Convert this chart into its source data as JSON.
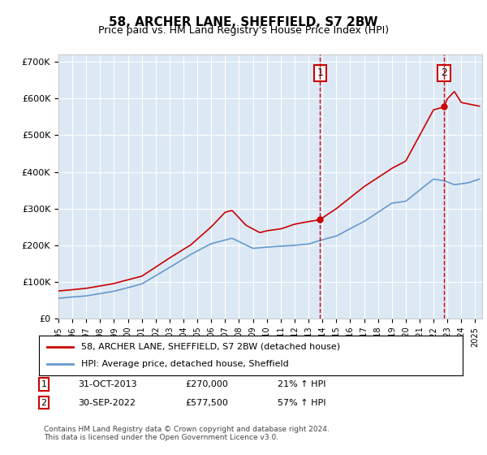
{
  "title": "58, ARCHER LANE, SHEFFIELD, S7 2BW",
  "subtitle": "Price paid vs. HM Land Registry's House Price Index (HPI)",
  "ylabel_ticks": [
    "£0",
    "£100K",
    "£200K",
    "£300K",
    "£400K",
    "£500K",
    "£600K",
    "£700K"
  ],
  "ylim": [
    0,
    720000
  ],
  "xlim_start": 1995.0,
  "xlim_end": 2025.5,
  "red_line_color": "#cc0000",
  "blue_line_color": "#6699cc",
  "background_color": "#dce9f5",
  "grid_color": "#ffffff",
  "annotation1": {
    "label": "1",
    "date_num": 2013.83,
    "price": 270000,
    "hpi_pct": "21% ↑ HPI",
    "date_str": "31-OCT-2013"
  },
  "annotation2": {
    "label": "2",
    "date_num": 2022.75,
    "price": 577500,
    "hpi_pct": "57% ↑ HPI",
    "date_str": "30-SEP-2022"
  },
  "legend_red": "58, ARCHER LANE, SHEFFIELD, S7 2BW (detached house)",
  "legend_blue": "HPI: Average price, detached house, Sheffield",
  "footer": "Contains HM Land Registry data © Crown copyright and database right 2024.\nThis data is licensed under the Open Government Licence v3.0.",
  "xtick_years": [
    1995,
    1996,
    1997,
    1998,
    1999,
    2000,
    2001,
    2002,
    2003,
    2004,
    2005,
    2006,
    2007,
    2008,
    2009,
    2010,
    2011,
    2012,
    2013,
    2014,
    2015,
    2016,
    2017,
    2018,
    2019,
    2020,
    2021,
    2022,
    2023,
    2024,
    2025
  ],
  "blue_kx": [
    1995,
    1997,
    1999,
    2001,
    2003,
    2004.5,
    2006,
    2007.5,
    2009,
    2010,
    2011,
    2012,
    2013,
    2014,
    2015,
    2016,
    2017,
    2018,
    2019,
    2020,
    2021,
    2022,
    2022.8,
    2023.5,
    2024.5,
    2025.3
  ],
  "blue_ky": [
    55000,
    62000,
    75000,
    95000,
    140000,
    175000,
    205000,
    220000,
    192000,
    195000,
    198000,
    200000,
    203000,
    215000,
    225000,
    245000,
    265000,
    290000,
    315000,
    320000,
    350000,
    380000,
    375000,
    365000,
    370000,
    380000
  ],
  "red_kx": [
    1995,
    1997,
    1999,
    2001,
    2003,
    2004.5,
    2006,
    2007,
    2007.5,
    2008.5,
    2009.5,
    2010,
    2011,
    2012,
    2013,
    2013.83,
    2014,
    2015,
    2016,
    2017,
    2018,
    2019,
    2020,
    2021,
    2022,
    2022.75,
    2023,
    2023.5,
    2024,
    2025.3
  ],
  "red_ky": [
    75000,
    82000,
    95000,
    115000,
    165000,
    200000,
    250000,
    290000,
    295000,
    255000,
    235000,
    240000,
    245000,
    258000,
    265000,
    270000,
    275000,
    300000,
    330000,
    360000,
    385000,
    410000,
    430000,
    500000,
    570000,
    577500,
    600000,
    620000,
    590000,
    580000
  ]
}
